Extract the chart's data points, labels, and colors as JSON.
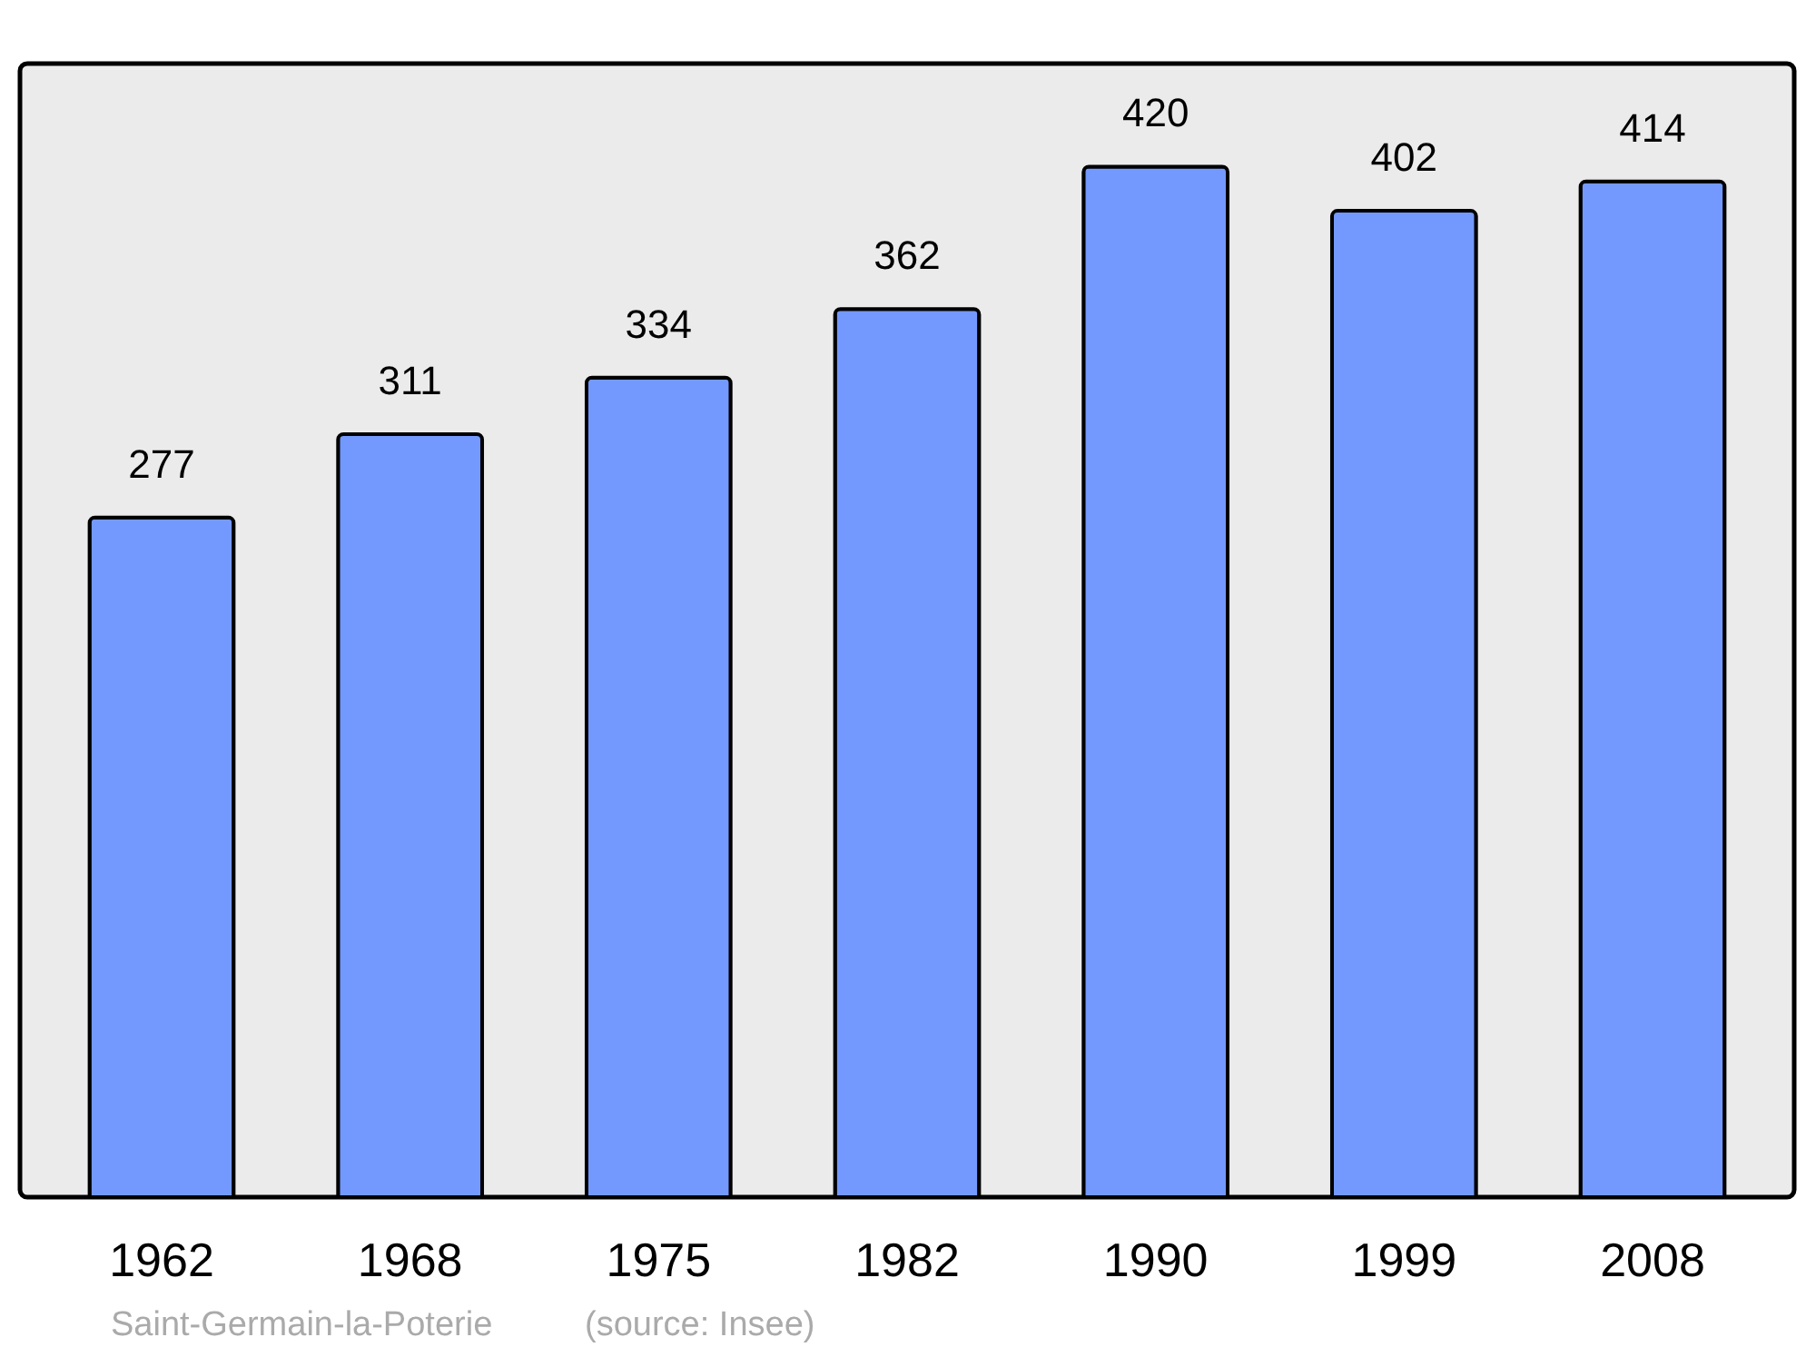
{
  "chart_data": {
    "type": "bar",
    "categories": [
      "1962",
      "1968",
      "1975",
      "1982",
      "1990",
      "1999",
      "2008"
    ],
    "values": [
      277,
      311,
      334,
      362,
      420,
      402,
      414
    ],
    "color": "#7399ff",
    "data_labels": true,
    "tick_labels": "x",
    "annotations": [
      "Saint-Germain-la-Poterie",
      "(source: Insee)"
    ]
  }
}
